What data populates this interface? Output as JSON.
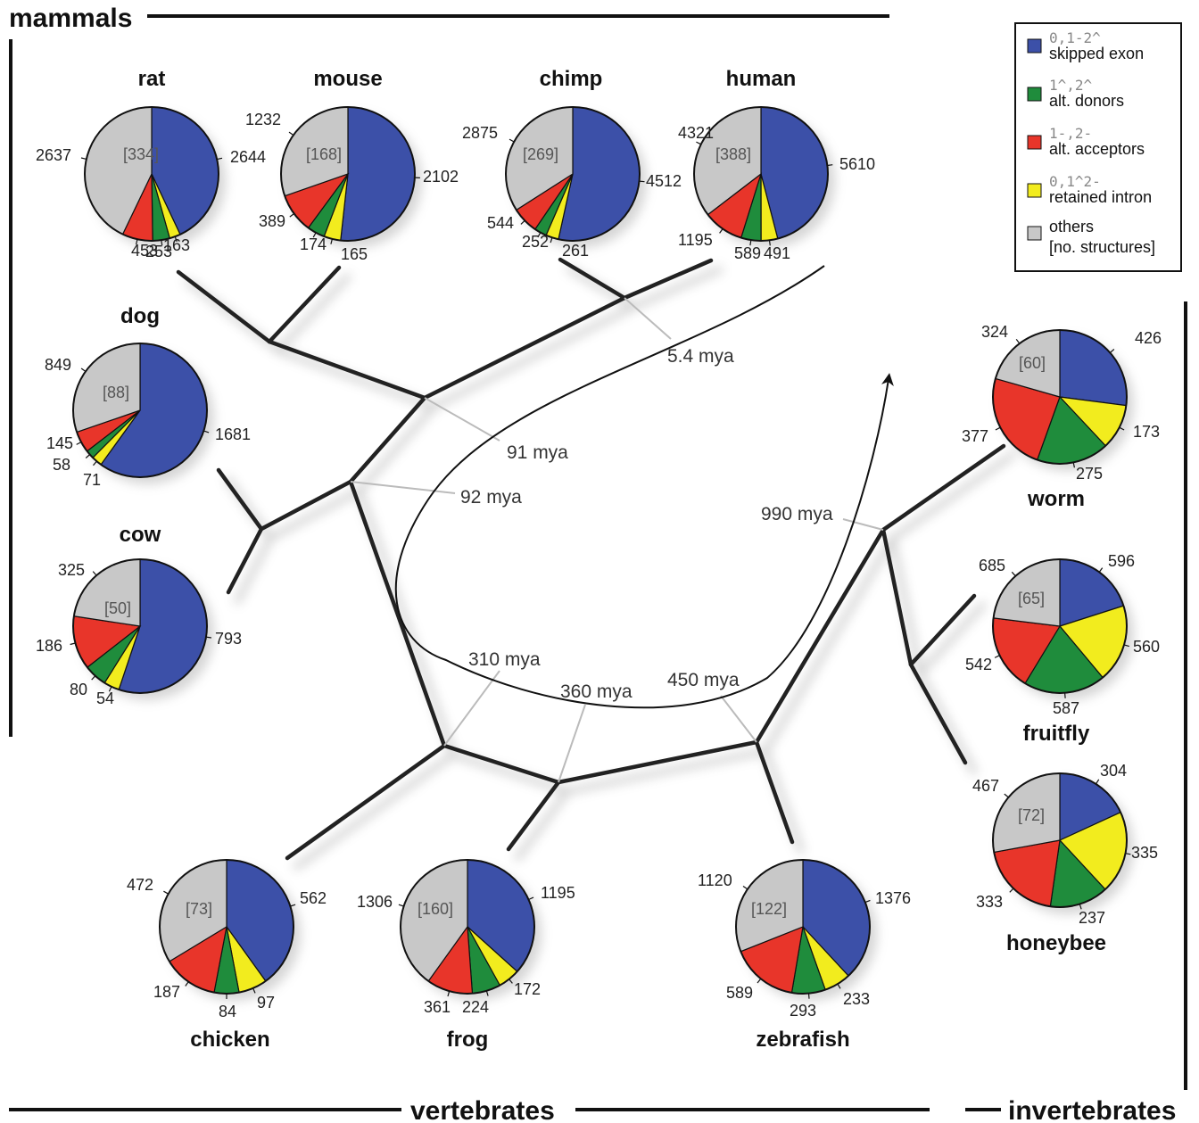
{
  "groups": {
    "mammals": "mammals",
    "vertebrates": "vertebrates",
    "invertebrates": "invertebrates"
  },
  "legend": [
    {
      "code": "0,1-2^",
      "label": "skipped exon",
      "color": "#3c50a8"
    },
    {
      "code": "1^,2^",
      "label": "alt. donors",
      "color": "#1f8c3c"
    },
    {
      "code": "1-,2-",
      "label": "alt. acceptors",
      "color": "#e8352a"
    },
    {
      "code": "0,1^2-",
      "label": "retained intron",
      "color": "#f2ec1e"
    },
    {
      "code": "",
      "label": "others",
      "label2": "[no. structures]",
      "color": "#c8c8c8"
    }
  ],
  "divergence_times": [
    "5.4 mya",
    "91 mya",
    "92 mya",
    "310 mya",
    "360 mya",
    "450 mya",
    "990 mya"
  ],
  "chart_data": {
    "type": "pie",
    "slice_order": [
      "skipped exon",
      "retained intron",
      "alt. donors",
      "alt. acceptors",
      "others"
    ],
    "species": [
      {
        "name": "rat",
        "structures": "[334]",
        "skipped_exon": 2644,
        "retained_intron": 163,
        "alt_donors": 253,
        "alt_acceptors": 453,
        "others": 2637
      },
      {
        "name": "mouse",
        "structures": "[168]",
        "skipped_exon": 2102,
        "retained_intron": 165,
        "alt_donors": 174,
        "alt_acceptors": 389,
        "others": 1232
      },
      {
        "name": "chimp",
        "structures": "[269]",
        "skipped_exon": 4512,
        "retained_intron": 261,
        "alt_donors": 252,
        "alt_acceptors": 544,
        "others": 2875
      },
      {
        "name": "human",
        "structures": "[388]",
        "skipped_exon": 5610,
        "retained_intron": 491,
        "alt_donors": 589,
        "alt_acceptors": 1195,
        "others": 4321
      },
      {
        "name": "dog",
        "structures": "[88]",
        "skipped_exon": 1681,
        "retained_intron": 71,
        "alt_donors": 58,
        "alt_acceptors": 145,
        "others": 849
      },
      {
        "name": "cow",
        "structures": "[50]",
        "skipped_exon": 793,
        "retained_intron": 54,
        "alt_donors": 80,
        "alt_acceptors": 186,
        "others": 325
      },
      {
        "name": "chicken",
        "structures": "[73]",
        "skipped_exon": 562,
        "retained_intron": 97,
        "alt_donors": 84,
        "alt_acceptors": 187,
        "others": 472
      },
      {
        "name": "frog",
        "structures": "[160]",
        "skipped_exon": 1195,
        "retained_intron": 172,
        "alt_donors": 224,
        "alt_acceptors": 361,
        "others": 1306
      },
      {
        "name": "zebrafish",
        "structures": "[122]",
        "skipped_exon": 1376,
        "retained_intron": 233,
        "alt_donors": 293,
        "alt_acceptors": 589,
        "others": 1120
      },
      {
        "name": "worm",
        "structures": "[60]",
        "skipped_exon": 426,
        "retained_intron": 173,
        "alt_donors": 275,
        "alt_acceptors": 377,
        "others": 324
      },
      {
        "name": "fruitfly",
        "structures": "[65]",
        "skipped_exon": 596,
        "retained_intron": 560,
        "alt_donors": 587,
        "alt_acceptors": 542,
        "others": 685
      },
      {
        "name": "honeybee",
        "structures": "[72]",
        "skipped_exon": 304,
        "retained_intron": 335,
        "alt_donors": 237,
        "alt_acceptors": 333,
        "others": 467
      }
    ]
  }
}
